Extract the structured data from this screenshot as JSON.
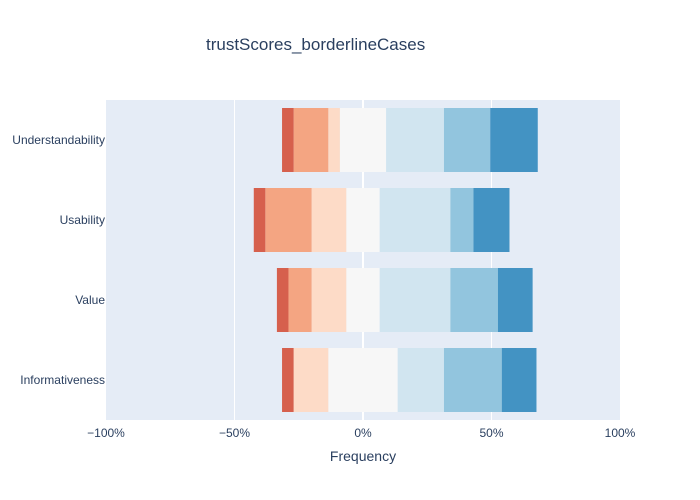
{
  "chart_data": {
    "type": "bar",
    "orientation": "horizontal",
    "barmode": "relative (diverging stacked)",
    "title": "trustScores_borderlineCases",
    "xlabel": "Frequency",
    "ylabel": "",
    "xlim": [
      -100,
      100
    ],
    "x_ticks": [
      -100,
      -50,
      0,
      50,
      100
    ],
    "x_tick_labels": [
      "−100%",
      "−50%",
      "0%",
      "50%",
      "100%"
    ],
    "grid": true,
    "legend": "none",
    "categories": [
      "Understandability",
      "Usability",
      "Value",
      "Informativeness"
    ],
    "segments": [
      {
        "color": "#d6604d",
        "values": [
          -4.5,
          -4.5,
          -4.5,
          -4.5
        ]
      },
      {
        "color": "#f4a582",
        "values": [
          -13.5,
          -18,
          -9,
          0
        ]
      },
      {
        "color": "#fddbc7",
        "values": [
          -4.5,
          -13.5,
          -13.5,
          -13.5
        ]
      },
      {
        "color": "#f7f7f7",
        "values": [
          -9,
          -6.5,
          -6.5,
          -13.5
        ]
      },
      {
        "color": "#f7f7f7",
        "values": [
          9,
          6.5,
          6.5,
          13.5
        ]
      },
      {
        "color": "#d1e5f0",
        "values": [
          22.5,
          27.5,
          27.5,
          18
        ]
      },
      {
        "color": "#92c5de",
        "values": [
          18,
          9,
          18.5,
          22.5
        ]
      },
      {
        "color": "#4393c3",
        "values": [
          18.5,
          14,
          13.5,
          13.5
        ]
      }
    ],
    "colors": {
      "plot_bg": "#e5ecf6",
      "grid": "#ffffff",
      "text": "#2a3f5f"
    }
  }
}
